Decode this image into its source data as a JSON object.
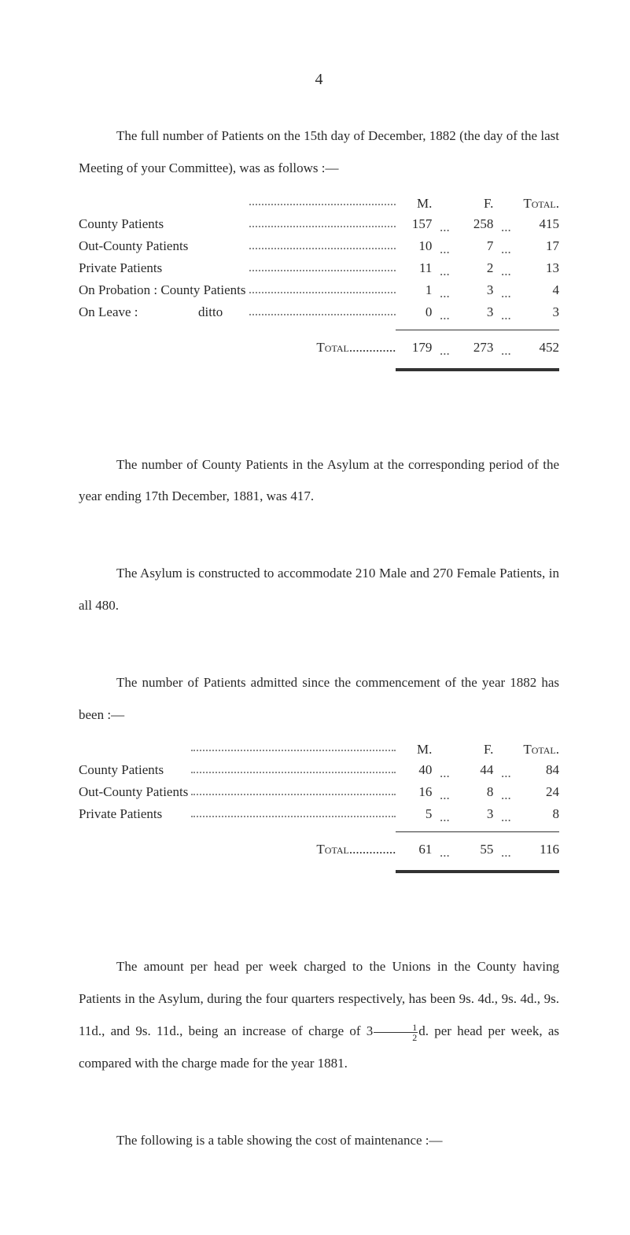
{
  "page_number": "4",
  "intro_paragraph": "The full number of Patients on the 15th day of December, 1882 (the day of the last Meeting of your Committee), was as follows :—",
  "table1": {
    "headers": {
      "m": "M.",
      "f": "F.",
      "total": "Total."
    },
    "rows": [
      {
        "label": "County Patients",
        "m": "157",
        "f": "258",
        "total": "415"
      },
      {
        "label": "Out-County Patients",
        "m": "10",
        "f": "7",
        "total": "17"
      },
      {
        "label": "Private Patients",
        "m": "11",
        "f": "2",
        "total": "13"
      },
      {
        "label": "On Probation :  County Patients",
        "m": "1",
        "f": "3",
        "total": "4"
      },
      {
        "label": "On Leave :                  ditto",
        "m": "0",
        "f": "3",
        "total": "3"
      }
    ],
    "total_label": "Total",
    "totals": {
      "m": "179",
      "f": "273",
      "total": "452"
    }
  },
  "para2": "The number of County Patients in the Asylum at the corresponding period of the year ending 17th December, 1881, was 417.",
  "para3": "The Asylum is constructed to accommodate 210 Male and 270 Female Patients, in all 480.",
  "para4": "The number of Patients admitted since the commencement of the year 1882 has been :—",
  "table2": {
    "headers": {
      "m": "M.",
      "f": "F.",
      "total": "Total."
    },
    "rows": [
      {
        "label": "County Patients",
        "m": "40",
        "f": "44",
        "total": "84"
      },
      {
        "label": "Out-County Patients",
        "m": "16",
        "f": "8",
        "total": "24"
      },
      {
        "label": "Private Patients",
        "m": "5",
        "f": "3",
        "total": "8"
      }
    ],
    "total_label": "Total",
    "totals": {
      "m": "61",
      "f": "55",
      "total": "116"
    }
  },
  "para5_a": "The amount per head per week charged to the Unions in the County having Patients in the Asylum, during the four quarters respectively, has been 9s. 4d., 9s. 4d., 9s. 11d., and 9s. 11d., being an increase of charge of 3",
  "para5_b": "d. per head per week, as compared with the charge made for the year 1881.",
  "frac_top": "1",
  "frac_bot": "2",
  "para6": "The following is a table showing the cost of maintenance :—",
  "ellipsis": "...",
  "colors": {
    "background": "#ffffff",
    "text": "#2a2a2a",
    "dots": "#888888",
    "rule": "#333333"
  },
  "typography": {
    "body_fontsize_pt": 13,
    "page_number_fontsize_pt": 15,
    "line_height": 2.4,
    "font_family": "Georgia serif"
  }
}
